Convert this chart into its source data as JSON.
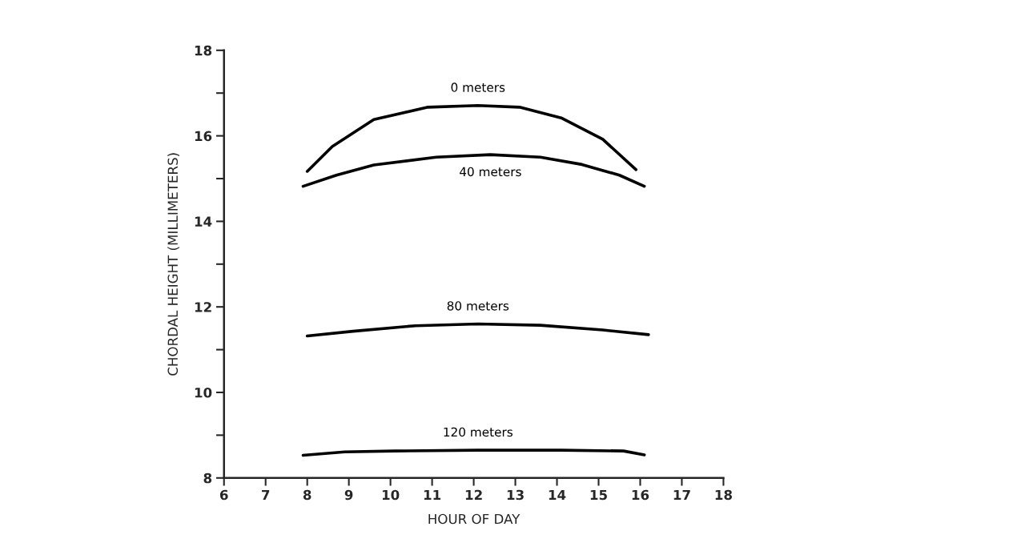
{
  "chart_data": {
    "type": "line",
    "xlabel": "HOUR OF DAY",
    "ylabel": "CHORDAL HEIGHT (MILLIMETERS)",
    "xlim": [
      6,
      18
    ],
    "xticks": [
      6,
      7,
      8,
      9,
      10,
      11,
      12,
      13,
      14,
      15,
      16,
      17,
      18
    ],
    "ylim": [
      8,
      18
    ],
    "yticks": [
      8,
      {
        "value": 9,
        "label": null
      },
      10,
      {
        "value": 11,
        "label": null
      },
      12,
      {
        "value": 13,
        "label": null
      },
      14,
      {
        "value": 15,
        "label": null
      },
      16,
      {
        "value": 17,
        "label": null
      },
      18
    ],
    "grid": false,
    "marker": "none",
    "line_style": "solid",
    "series": [
      {
        "name": "0 meters",
        "color": "#000000",
        "x": [
          8.0,
          8.6,
          9.6,
          10.9,
          12.1,
          13.1,
          14.1,
          15.1,
          15.9
        ],
        "values": [
          15.17,
          15.75,
          16.38,
          16.67,
          16.71,
          16.67,
          16.42,
          15.92,
          15.21
        ]
      },
      {
        "name": "40 meters",
        "color": "#000000",
        "x": [
          7.9,
          8.7,
          9.6,
          11.1,
          12.4,
          13.6,
          14.6,
          15.5,
          16.1
        ],
        "values": [
          14.82,
          15.08,
          15.32,
          15.5,
          15.56,
          15.5,
          15.33,
          15.08,
          14.82
        ]
      },
      {
        "name": "80 meters",
        "color": "#000000",
        "x": [
          8.0,
          9.1,
          10.6,
          12.1,
          13.6,
          15.1,
          16.2
        ],
        "values": [
          11.32,
          11.43,
          11.56,
          11.6,
          11.57,
          11.46,
          11.35
        ]
      },
      {
        "name": "120 meters",
        "color": "#000000",
        "x": [
          7.9,
          8.9,
          10.1,
          12.1,
          14.1,
          15.6,
          16.1
        ],
        "values": [
          8.53,
          8.61,
          8.63,
          8.65,
          8.65,
          8.63,
          8.54
        ]
      }
    ]
  }
}
